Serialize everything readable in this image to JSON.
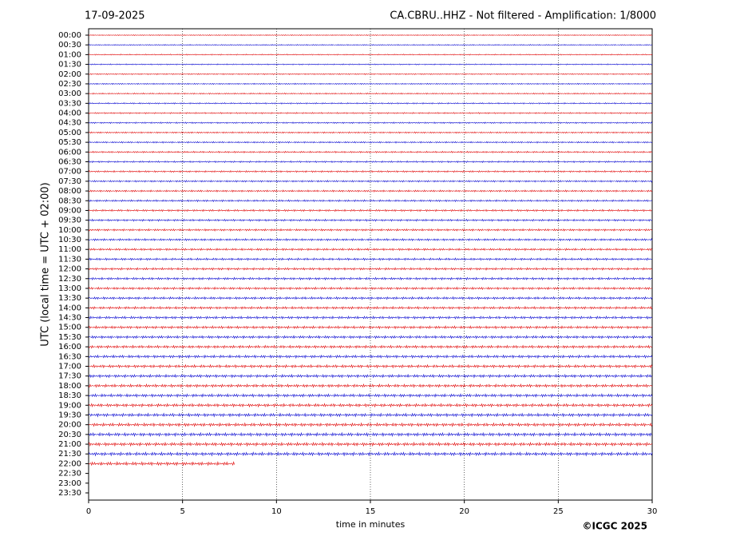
{
  "chart_data": {
    "type": "helicorder",
    "title_left": "17-09-2025",
    "title": "CA.CBRU..HHZ - Not filtered - Amplification: 1/8000",
    "y_label": "UTC (local time = UTC + 02:00)",
    "x_label": "time in minutes",
    "credit": "©ICGC 2025",
    "categories": [
      "00:00",
      "00:30",
      "01:00",
      "01:30",
      "02:00",
      "02:30",
      "03:00",
      "03:30",
      "04:00",
      "04:30",
      "05:00",
      "05:30",
      "06:00",
      "06:30",
      "07:00",
      "07:30",
      "08:00",
      "08:30",
      "09:00",
      "09:30",
      "10:00",
      "10:30",
      "11:00",
      "11:30",
      "12:00",
      "12:30",
      "13:00",
      "13:30",
      "14:00",
      "14:30",
      "15:00",
      "15:30",
      "16:00",
      "16:30",
      "17:00",
      "17:30",
      "18:00",
      "18:30",
      "19:00",
      "19:30",
      "20:00",
      "20:30",
      "21:00",
      "21:30",
      "22:00",
      "22:30",
      "23:00",
      "23:30"
    ],
    "traces": [
      30,
      30,
      30,
      30,
      30,
      30,
      30,
      30,
      30,
      30,
      30,
      30,
      30,
      30,
      30,
      30,
      30,
      30,
      30,
      30,
      30,
      30,
      30,
      30,
      30,
      30,
      30,
      30,
      30,
      30,
      30,
      30,
      30,
      30,
      30,
      30,
      30,
      30,
      30,
      30,
      30,
      30,
      30,
      30,
      7.8
    ],
    "trace_colors": [
      "#e00000",
      "#0000d0"
    ],
    "xlim": [
      0,
      30
    ],
    "xticks": [
      0,
      5,
      10,
      15,
      20,
      25,
      30
    ],
    "grid": true
  }
}
